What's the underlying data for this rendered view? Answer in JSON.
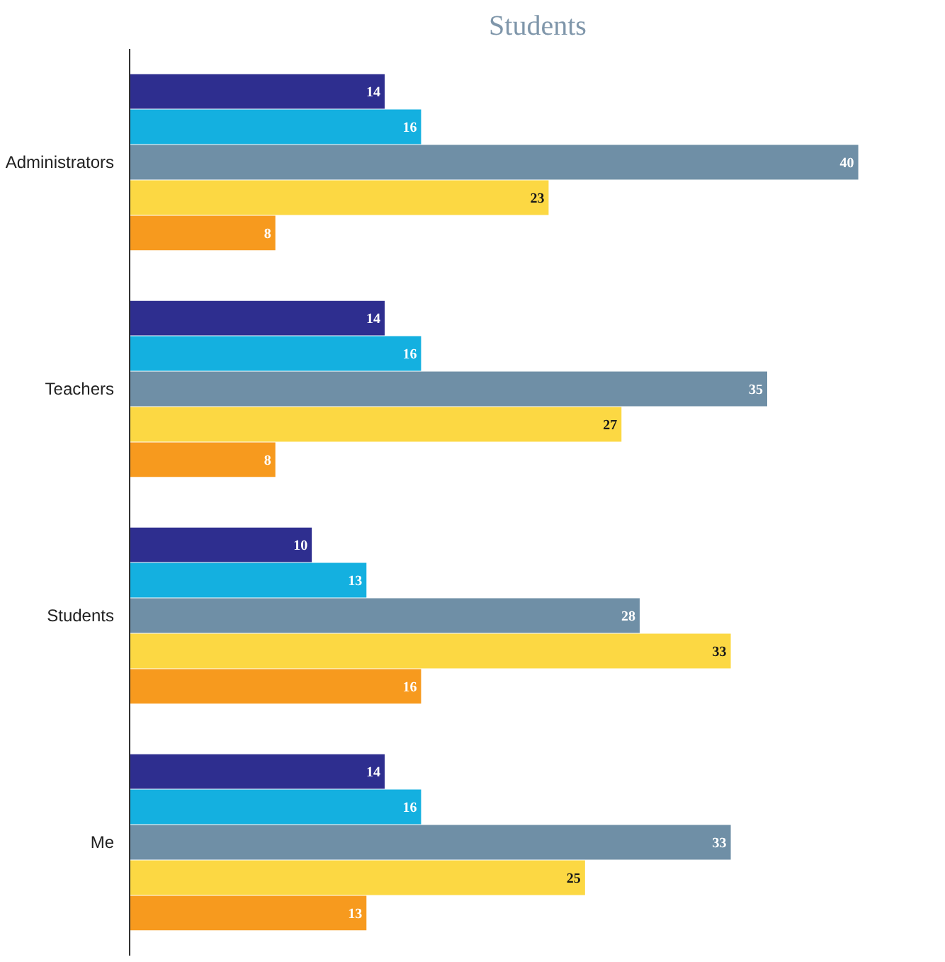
{
  "chart_data": {
    "type": "bar",
    "orientation": "horizontal",
    "title": "Students",
    "categories": [
      "Administrators",
      "Teachers",
      "Students",
      "Me"
    ],
    "data_labels": true,
    "series": [
      {
        "color": "#2e2e8f",
        "values": [
          14,
          14,
          10,
          14
        ]
      },
      {
        "color": "#14b0e0",
        "values": [
          16,
          16,
          13,
          16
        ]
      },
      {
        "color": "#6f8fa6",
        "values": [
          40,
          35,
          28,
          33
        ]
      },
      {
        "color": "#fcd843",
        "values": [
          23,
          27,
          33,
          25
        ]
      },
      {
        "color": "#f79a1e",
        "values": [
          8,
          8,
          16,
          13
        ]
      }
    ]
  }
}
